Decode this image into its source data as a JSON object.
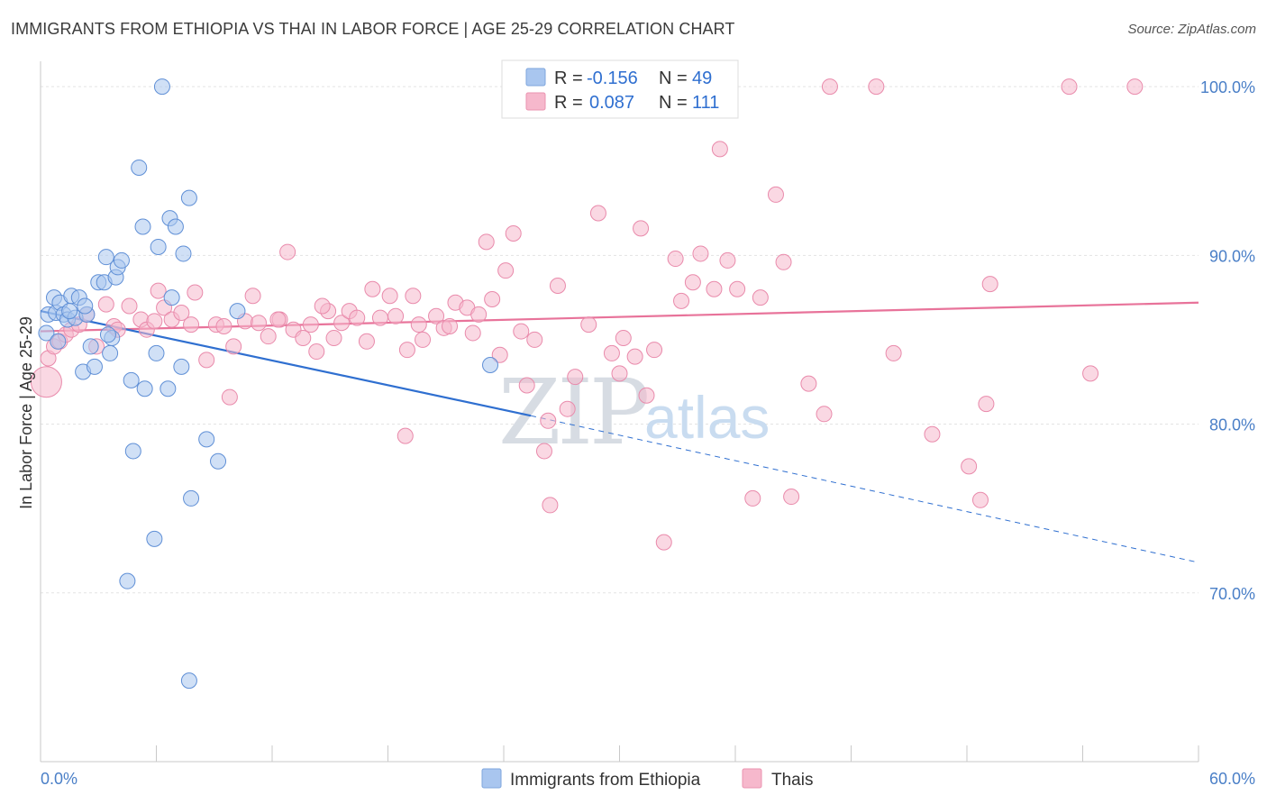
{
  "title": "IMMIGRANTS FROM ETHIOPIA VS THAI IN LABOR FORCE | AGE 25-29 CORRELATION CHART",
  "source": "Source: ZipAtlas.com",
  "legend": {
    "r_label": "R =",
    "n_label": "N =",
    "rows": [
      {
        "r": "-0.156",
        "n": "49",
        "color": "#a9c6ef"
      },
      {
        "r": "0.087",
        "n": "111",
        "color": "#f6b8cc"
      }
    ]
  },
  "watermark": {
    "zip": "ZIP",
    "atlas": "atlas"
  },
  "colors": {
    "blue_dot": "#a9c6ef",
    "blue_line": "#2f6fd0",
    "pink_dot": "#f6b8cc",
    "pink_line": "#e8739a",
    "tick_text": "#4a7fc7"
  },
  "chart_data": {
    "type": "scatter",
    "title": "IMMIGRANTS FROM ETHIOPIA VS THAI IN LABOR FORCE | AGE 25-29 CORRELATION CHART",
    "xlabel": "",
    "ylabel": "In Labor Force | Age 25-29",
    "xlim": [
      0,
      60
    ],
    "ylim": [
      60,
      101.5
    ],
    "x_tick_labels": [
      "0.0%",
      "60.0%"
    ],
    "y_ticks": [
      70,
      80,
      90,
      100
    ],
    "y_tick_labels": [
      "70.0%",
      "80.0%",
      "90.0%",
      "100.0%"
    ],
    "grid": true,
    "legend_position": "top-center",
    "series": [
      {
        "name": "Immigrants from Ethiopia",
        "color": "#a9c6ef",
        "trend": {
          "x": [
            0,
            25.4
          ],
          "y": [
            86.7,
            80.5
          ],
          "dashed_extension_to": [
            60,
            71.8
          ]
        },
        "points": [
          [
            0.3,
            85.4
          ],
          [
            0.4,
            86.5
          ],
          [
            0.7,
            87.5
          ],
          [
            0.8,
            86.6
          ],
          [
            1.0,
            87.2
          ],
          [
            1.2,
            86.5
          ],
          [
            1.4,
            86.2
          ],
          [
            1.6,
            87.6
          ],
          [
            1.8,
            86.3
          ],
          [
            2.0,
            87.5
          ],
          [
            2.2,
            83.1
          ],
          [
            2.4,
            86.5
          ],
          [
            2.8,
            83.4
          ],
          [
            3.0,
            88.4
          ],
          [
            3.3,
            88.4
          ],
          [
            3.4,
            89.9
          ],
          [
            3.6,
            84.2
          ],
          [
            3.7,
            85.1
          ],
          [
            3.9,
            88.7
          ],
          [
            4.0,
            89.3
          ],
          [
            4.2,
            89.7
          ],
          [
            4.7,
            82.6
          ],
          [
            4.8,
            78.4
          ],
          [
            5.1,
            95.2
          ],
          [
            5.3,
            91.7
          ],
          [
            5.4,
            82.1
          ],
          [
            5.9,
            73.2
          ],
          [
            6.0,
            84.2
          ],
          [
            6.1,
            90.5
          ],
          [
            6.6,
            82.1
          ],
          [
            6.7,
            92.2
          ],
          [
            6.8,
            87.5
          ],
          [
            7.0,
            91.7
          ],
          [
            7.3,
            83.4
          ],
          [
            7.4,
            90.1
          ],
          [
            7.7,
            93.4
          ],
          [
            7.8,
            75.6
          ],
          [
            8.6,
            79.1
          ],
          [
            9.2,
            77.8
          ],
          [
            10.2,
            86.7
          ],
          [
            4.5,
            70.7
          ],
          [
            7.7,
            64.8
          ],
          [
            6.3,
            100.0
          ],
          [
            23.3,
            83.5
          ],
          [
            3.5,
            85.3
          ],
          [
            2.3,
            87.0
          ],
          [
            1.5,
            86.7
          ],
          [
            0.9,
            84.9
          ],
          [
            2.6,
            84.6
          ]
        ]
      },
      {
        "name": "Thais",
        "color": "#f6b8cc",
        "trend": {
          "x": [
            0,
            60
          ],
          "y": [
            85.5,
            87.2
          ]
        },
        "points": [
          [
            0.3,
            82.5
          ],
          [
            0.4,
            83.9
          ],
          [
            0.7,
            84.6
          ],
          [
            1.0,
            84.9
          ],
          [
            1.3,
            85.3
          ],
          [
            1.6,
            85.6
          ],
          [
            2.0,
            85.9
          ],
          [
            2.4,
            86.5
          ],
          [
            2.9,
            84.6
          ],
          [
            3.4,
            87.1
          ],
          [
            3.8,
            85.8
          ],
          [
            4.0,
            85.6
          ],
          [
            4.6,
            87.0
          ],
          [
            5.2,
            86.2
          ],
          [
            5.5,
            85.6
          ],
          [
            5.9,
            86.1
          ],
          [
            6.1,
            87.9
          ],
          [
            6.4,
            86.9
          ],
          [
            6.8,
            86.2
          ],
          [
            7.3,
            86.6
          ],
          [
            7.8,
            85.9
          ],
          [
            8.0,
            87.8
          ],
          [
            8.6,
            83.8
          ],
          [
            9.1,
            85.9
          ],
          [
            9.5,
            85.8
          ],
          [
            9.8,
            81.6
          ],
          [
            10.0,
            84.6
          ],
          [
            10.6,
            86.1
          ],
          [
            11.0,
            87.6
          ],
          [
            11.3,
            86.0
          ],
          [
            11.8,
            85.2
          ],
          [
            12.4,
            86.2
          ],
          [
            12.8,
            90.2
          ],
          [
            13.1,
            85.6
          ],
          [
            13.6,
            85.1
          ],
          [
            14.0,
            85.9
          ],
          [
            14.3,
            84.3
          ],
          [
            14.9,
            86.7
          ],
          [
            15.2,
            85.1
          ],
          [
            15.6,
            86.0
          ],
          [
            16.0,
            86.7
          ],
          [
            16.4,
            86.3
          ],
          [
            16.9,
            84.9
          ],
          [
            17.2,
            88.0
          ],
          [
            17.6,
            86.3
          ],
          [
            18.1,
            87.6
          ],
          [
            18.4,
            86.4
          ],
          [
            18.9,
            79.3
          ],
          [
            19.3,
            87.6
          ],
          [
            19.6,
            85.9
          ],
          [
            19.8,
            85.0
          ],
          [
            20.5,
            86.4
          ],
          [
            20.9,
            85.7
          ],
          [
            21.2,
            85.8
          ],
          [
            21.5,
            87.2
          ],
          [
            22.1,
            86.9
          ],
          [
            22.4,
            85.4
          ],
          [
            22.7,
            86.5
          ],
          [
            23.1,
            90.8
          ],
          [
            23.4,
            87.4
          ],
          [
            23.8,
            84.1
          ],
          [
            24.1,
            89.1
          ],
          [
            24.5,
            91.3
          ],
          [
            24.9,
            85.5
          ],
          [
            25.2,
            82.3
          ],
          [
            25.6,
            85.0
          ],
          [
            26.1,
            78.4
          ],
          [
            26.4,
            75.2
          ],
          [
            26.8,
            88.2
          ],
          [
            27.3,
            80.9
          ],
          [
            27.7,
            82.8
          ],
          [
            28.4,
            85.9
          ],
          [
            28.9,
            92.5
          ],
          [
            29.6,
            84.2
          ],
          [
            30.0,
            83.0
          ],
          [
            30.2,
            85.1
          ],
          [
            30.8,
            84.0
          ],
          [
            31.1,
            91.6
          ],
          [
            31.4,
            81.7
          ],
          [
            31.8,
            84.4
          ],
          [
            32.3,
            73.0
          ],
          [
            32.9,
            89.8
          ],
          [
            33.2,
            87.3
          ],
          [
            33.8,
            88.4
          ],
          [
            34.2,
            90.1
          ],
          [
            34.9,
            88.0
          ],
          [
            35.2,
            96.3
          ],
          [
            35.6,
            89.7
          ],
          [
            36.1,
            88.0
          ],
          [
            36.9,
            75.6
          ],
          [
            37.3,
            87.5
          ],
          [
            38.1,
            93.6
          ],
          [
            38.5,
            89.6
          ],
          [
            38.9,
            75.7
          ],
          [
            39.8,
            82.4
          ],
          [
            40.6,
            80.6
          ],
          [
            40.9,
            100.0
          ],
          [
            43.3,
            100.0
          ],
          [
            44.2,
            84.2
          ],
          [
            46.2,
            79.4
          ],
          [
            48.1,
            77.5
          ],
          [
            48.7,
            75.5
          ],
          [
            49.0,
            81.2
          ],
          [
            49.2,
            88.3
          ],
          [
            53.3,
            100.0
          ],
          [
            54.4,
            83.0
          ],
          [
            56.7,
            100.0
          ],
          [
            26.3,
            80.2
          ],
          [
            12.3,
            86.2
          ],
          [
            14.6,
            87.0
          ],
          [
            19.0,
            84.4
          ]
        ]
      }
    ]
  },
  "bottom_legend": [
    {
      "label": "Immigrants from Ethiopia",
      "color": "#a9c6ef"
    },
    {
      "label": "Thais",
      "color": "#f6b8cc"
    }
  ]
}
